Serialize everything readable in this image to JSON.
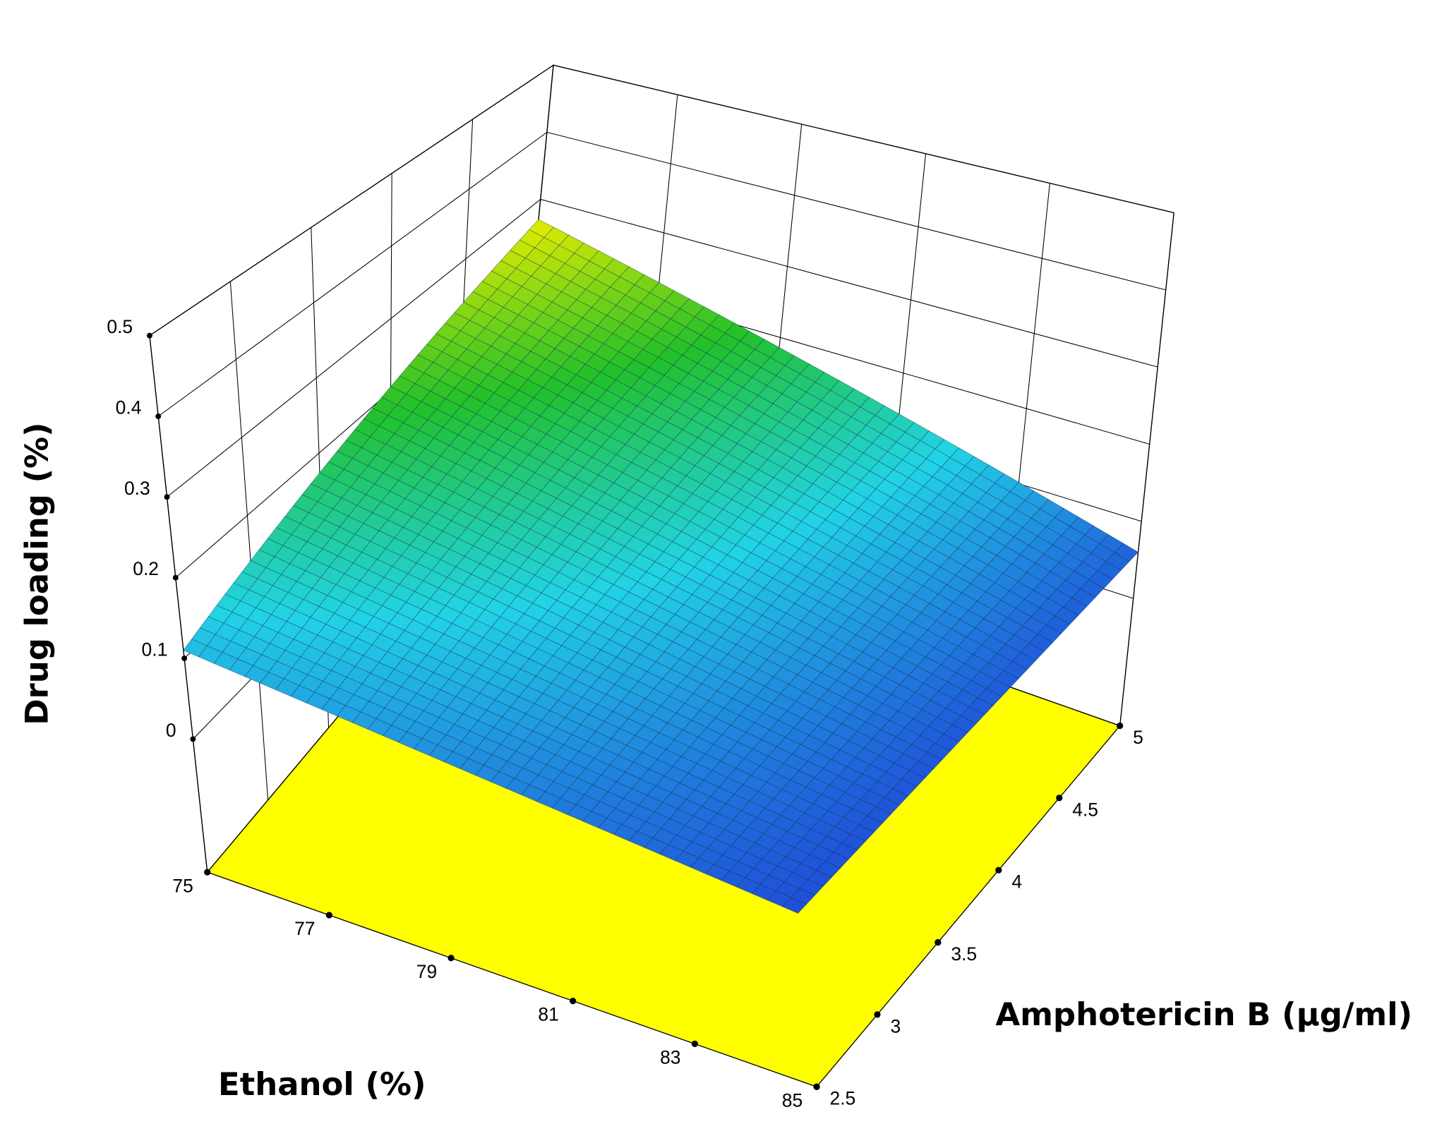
{
  "chart_data": {
    "type": "surface3d",
    "x_label": "Ethanol (%)",
    "y_label": "Amphotericin B (µg/ml)",
    "z_label": "Drug loading (%)",
    "xlim": [
      75,
      85
    ],
    "xticks": [
      75,
      77,
      79,
      81,
      83,
      85
    ],
    "ylim": [
      2.5,
      5
    ],
    "yticks": [
      2.5,
      3,
      3.5,
      4,
      4.5,
      5
    ],
    "zlim": [
      -0.165,
      0.5
    ],
    "zticks": [
      0,
      0.1,
      0.2,
      0.3,
      0.4,
      0.5
    ],
    "x": [
      75,
      77,
      79,
      81,
      83,
      85
    ],
    "y": [
      2.5,
      3,
      3.5,
      4,
      4.5,
      5
    ],
    "z": [
      [
        0.11,
        0.142,
        0.174,
        0.206,
        0.238,
        0.27
      ],
      [
        0.098,
        0.124,
        0.15,
        0.176,
        0.202,
        0.228
      ],
      [
        0.086,
        0.106,
        0.126,
        0.146,
        0.166,
        0.186
      ],
      [
        0.074,
        0.088,
        0.102,
        0.116,
        0.13,
        0.144
      ],
      [
        0.062,
        0.07,
        0.078,
        0.086,
        0.094,
        0.102
      ],
      [
        0.05,
        0.052,
        0.054,
        0.056,
        0.058,
        0.06
      ]
    ],
    "colormap": [
      "#1f4fd8",
      "#22d3e6",
      "#22c02a",
      "#e6ec00"
    ],
    "floor_color": "#ffff00",
    "grid": true
  }
}
